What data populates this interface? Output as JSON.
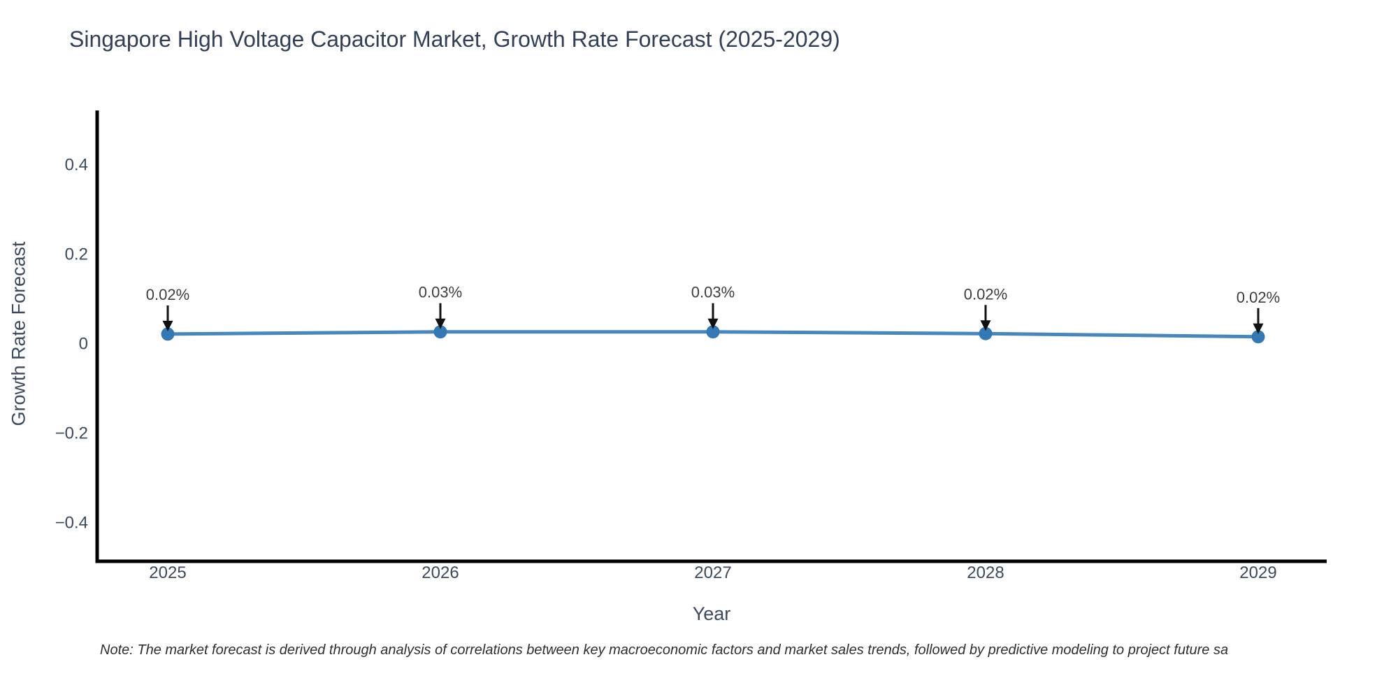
{
  "note": "Note: The market forecast is derived through analysis of correlations between key macroeconomic factors and market sales trends, followed by predictive modeling to project future sa",
  "chart_data": {
    "type": "line",
    "title": "Singapore High Voltage Capacitor Market, Growth Rate Forecast (2025-2029)",
    "xlabel": "Year",
    "ylabel": "Growth Rate Forecast",
    "categories": [
      2025,
      2026,
      2027,
      2028,
      2029
    ],
    "xtick_labels": [
      "2025",
      "2026",
      "2027",
      "2028",
      "2029"
    ],
    "yticks": [
      0.4,
      0.2,
      0,
      -0.2,
      -0.4
    ],
    "ytick_labels": [
      "0.4",
      "0.2",
      "0",
      "−0.2",
      "−0.4"
    ],
    "ylim": [
      -0.49,
      0.52
    ],
    "xlim": [
      2024.74,
      2029.25
    ],
    "grid": false,
    "legend": false,
    "series": [
      {
        "name": "Growth Rate Forecast",
        "x": [
          2025,
          2026,
          2027,
          2028,
          2029
        ],
        "values_percent": [
          0.02,
          0.03,
          0.03,
          0.02,
          0.02
        ],
        "point_labels": [
          "0.02%",
          "0.03%",
          "0.03%",
          "0.02%",
          "0.02%"
        ],
        "y_plot_estimate": [
          0.022,
          0.027,
          0.027,
          0.023,
          0.016
        ]
      }
    ],
    "colors": {
      "line": "#4A86B8",
      "marker": "#3579B4",
      "arrow": "#111111",
      "annotation_text": "#3D3D3D",
      "axis_spine": "#000000",
      "tick_text": "#3B4A5C",
      "title_text": "#333F54"
    }
  }
}
